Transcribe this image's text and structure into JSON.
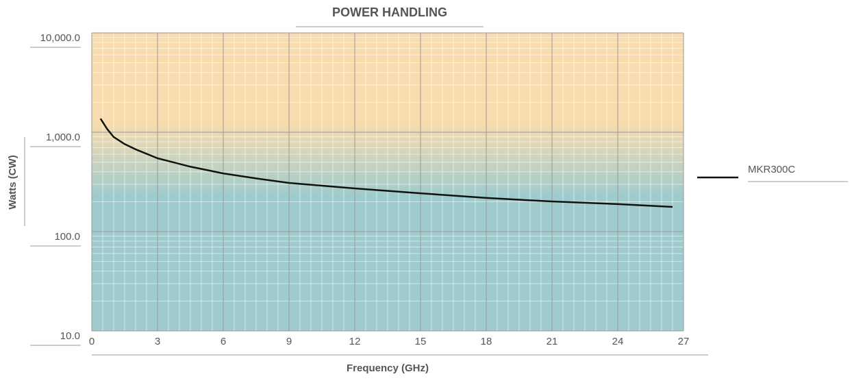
{
  "chart_data": {
    "type": "line",
    "title": "POWER HANDLING",
    "x_label": "Frequency (GHz)",
    "y_label": "Watts (CW)",
    "xlim": [
      0,
      27
    ],
    "xticks": [
      0,
      3,
      6,
      9,
      12,
      15,
      18,
      21,
      24,
      27
    ],
    "ylim": [
      10,
      10000
    ],
    "y_log": true,
    "yticks": [
      {
        "value": 10,
        "label": "10.0"
      },
      {
        "value": 100,
        "label": "100.0"
      },
      {
        "value": 1000,
        "label": "1,000.0"
      },
      {
        "value": 10000,
        "label": "10,000.0"
      }
    ],
    "grid": true,
    "minor_grid": true,
    "legend": "right",
    "background_colors": [
      "#f9dcae",
      "#9ecbcd"
    ],
    "series": [
      {
        "name": "MKR300C",
        "color": "#111111",
        "x": [
          0.4,
          0.7,
          1,
          1.5,
          2,
          3,
          4.5,
          6,
          7.5,
          9,
          10.5,
          12,
          15,
          18,
          21,
          24,
          26.5
        ],
        "values": [
          1370,
          1080,
          895,
          760,
          673,
          547,
          450,
          385,
          343,
          309,
          290,
          272,
          243,
          218,
          201,
          189,
          177
        ]
      }
    ]
  }
}
